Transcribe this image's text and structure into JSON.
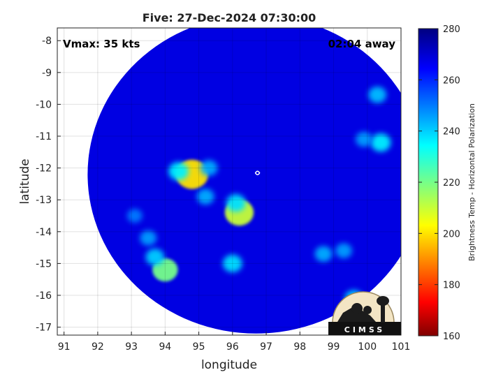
{
  "chart_data": {
    "type": "heatmap",
    "title": "Five: 27-Dec-2024 07:30:00",
    "xlabel": "longitude",
    "ylabel": "latitude",
    "xlim": [
      90.8,
      101
    ],
    "ylim": [
      -17.25,
      -7.6
    ],
    "x_ticks": [
      91,
      92,
      93,
      94,
      95,
      96,
      97,
      98,
      99,
      100,
      101
    ],
    "y_ticks": [
      -8,
      -9,
      -10,
      -11,
      -12,
      -13,
      -14,
      -15,
      -16,
      -17
    ],
    "grid": true,
    "annotations": {
      "vmax": "Vmax: 35 kts",
      "time_away": "02:04 away"
    },
    "center": {
      "lon": 96.7,
      "lat": -12.2
    },
    "swath_radius_deg": 5.0,
    "background_value": 268,
    "features": [
      {
        "lon": 94.8,
        "lat": -12.2,
        "value": 200
      },
      {
        "lon": 94.4,
        "lat": -12.1,
        "value": 236
      },
      {
        "lon": 95.3,
        "lat": -12.0,
        "value": 244
      },
      {
        "lon": 96.2,
        "lat": -13.4,
        "value": 210
      },
      {
        "lon": 96.1,
        "lat": -13.1,
        "value": 238
      },
      {
        "lon": 95.2,
        "lat": -12.9,
        "value": 244
      },
      {
        "lon": 94.0,
        "lat": -15.2,
        "value": 220
      },
      {
        "lon": 93.7,
        "lat": -14.8,
        "value": 240
      },
      {
        "lon": 93.5,
        "lat": -14.2,
        "value": 246
      },
      {
        "lon": 96.0,
        "lat": -15.0,
        "value": 238
      },
      {
        "lon": 98.7,
        "lat": -14.7,
        "value": 244
      },
      {
        "lon": 99.3,
        "lat": -14.6,
        "value": 246
      },
      {
        "lon": 100.4,
        "lat": -11.2,
        "value": 236
      },
      {
        "lon": 99.9,
        "lat": -11.1,
        "value": 246
      },
      {
        "lon": 100.3,
        "lat": -9.7,
        "value": 242
      },
      {
        "lon": 99.6,
        "lat": -16.1,
        "value": 240
      },
      {
        "lon": 93.1,
        "lat": -13.5,
        "value": 250
      }
    ],
    "colorbar": {
      "label": "Brightness Temp - Horizontal Polarization",
      "min": 160,
      "max": 280,
      "ticks": [
        280,
        260,
        240,
        220,
        200,
        180,
        160
      ],
      "colormap": "jet"
    },
    "logo": "CIMSS"
  }
}
